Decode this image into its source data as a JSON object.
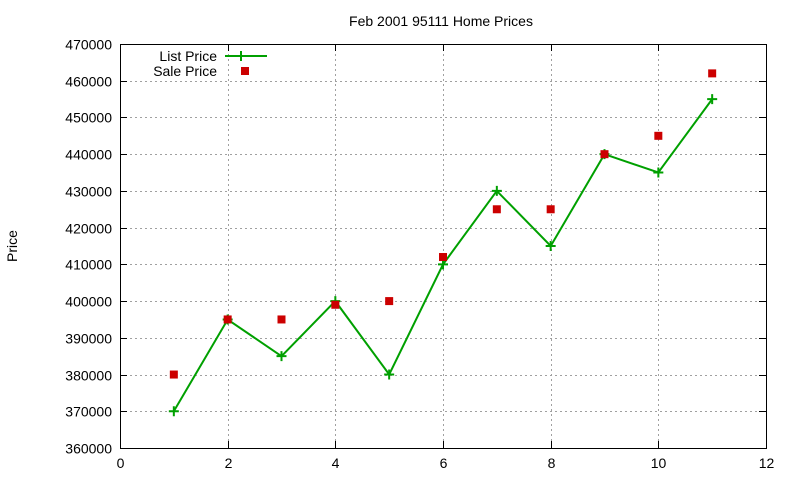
{
  "chart_data": {
    "type": "line",
    "title": "Feb 2001 95111 Home Prices",
    "xlabel": "",
    "ylabel": "Price",
    "xlim": [
      0,
      12
    ],
    "ylim": [
      360000,
      470000
    ],
    "x_ticks": [
      0,
      2,
      4,
      6,
      8,
      10,
      12
    ],
    "y_ticks": [
      360000,
      370000,
      380000,
      390000,
      400000,
      410000,
      420000,
      430000,
      440000,
      450000,
      460000,
      470000
    ],
    "grid": true,
    "legend_position": "top-left",
    "series": [
      {
        "name": "List Price",
        "style": "linespoints",
        "marker": "plus",
        "color": "#00a000",
        "x": [
          1,
          2,
          3,
          4,
          5,
          6,
          7,
          8,
          9,
          10,
          11
        ],
        "values": [
          370000,
          395000,
          385000,
          400000,
          380000,
          410000,
          430000,
          415000,
          440000,
          435000,
          455000
        ]
      },
      {
        "name": "Sale Price",
        "style": "points",
        "marker": "filled-square",
        "color": "#cc0000",
        "x": [
          1,
          2,
          3,
          4,
          5,
          6,
          7,
          8,
          9,
          10,
          11
        ],
        "values": [
          380000,
          395000,
          395000,
          399000,
          400000,
          412000,
          425000,
          425000,
          440000,
          445000,
          462000
        ]
      }
    ]
  },
  "legend": {
    "list_label": "List Price",
    "sale_label": "Sale Price"
  }
}
